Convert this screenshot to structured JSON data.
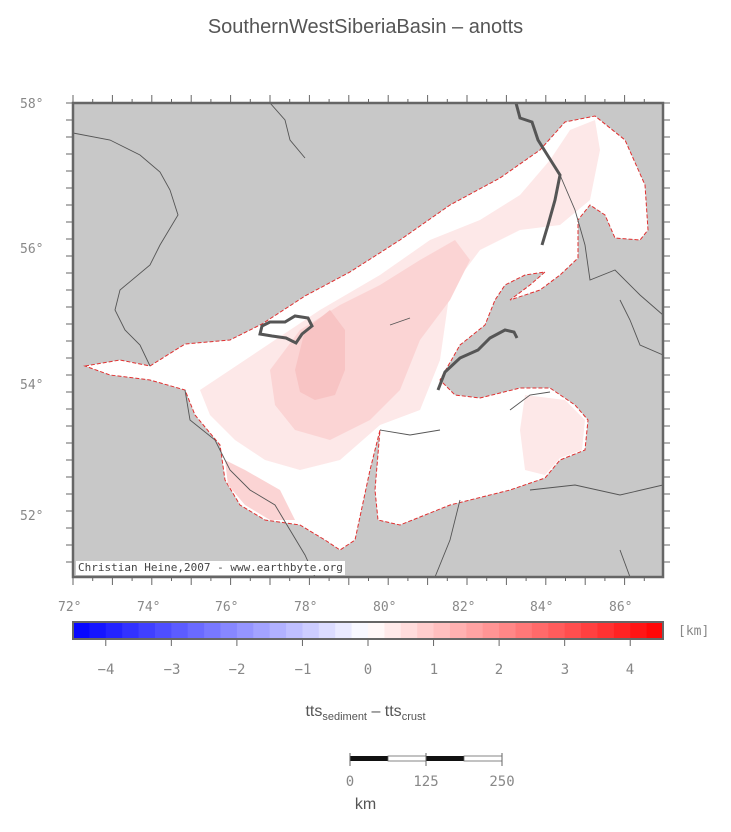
{
  "map": {
    "title": "SouthernWestSiberiaBasin – anotts",
    "credit": "Christian Heine,2007 - www.earthbyte.org",
    "lat_labels": [
      "58°",
      "56°",
      "54°",
      "52°"
    ],
    "lon_labels": [
      "72°",
      "74°",
      "76°",
      "78°",
      "80°",
      "82°",
      "84°",
      "86°"
    ],
    "colors": {
      "ocean_land": "#c8c8c8",
      "basin_edge": "#e03030",
      "river": "#555555"
    }
  },
  "colorbar": {
    "unit": "[km]",
    "min": -4.5,
    "max": 4.5,
    "labels": [
      "−4",
      "−3",
      "−2",
      "−1",
      "0",
      "1",
      "2",
      "3",
      "4"
    ],
    "formula_main": "tts",
    "formula_sub1": "sediment",
    "formula_mid": " – tts",
    "formula_sub2": "crust"
  },
  "scalebar": {
    "labels": [
      "0",
      "125",
      "250"
    ],
    "unit": "km"
  }
}
